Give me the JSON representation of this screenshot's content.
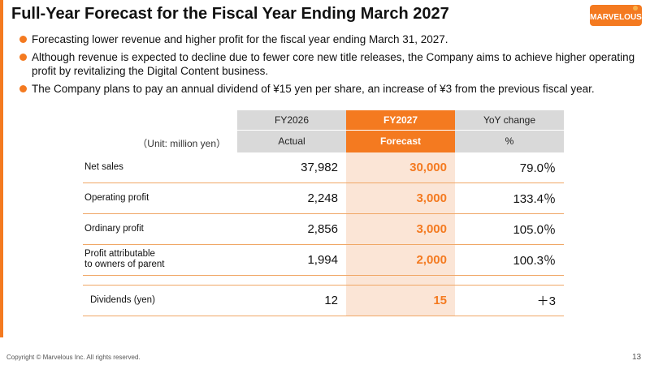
{
  "title": "Full-Year Forecast for the Fiscal Year Ending March 2027",
  "logo_text": "MARVELOUS",
  "bullets": [
    "Forecasting lower revenue and higher profit for the fiscal year ending March 31, 2027.",
    "Although revenue is expected to decline due to fewer core new title releases, the Company aims to achieve higher operating profit by revitalizing the Digital Content business.",
    "The Company plans to pay an annual dividend of ¥15 yen per share, an increase of ¥3 from the previous fiscal year."
  ],
  "table": {
    "unit": "（Unit: million yen）",
    "col_headers": [
      "FY2026",
      "FY2027",
      "YoY change"
    ],
    "col_subheaders": [
      "Actual",
      "Forecast",
      "%"
    ],
    "rows": [
      {
        "label": "Net sales",
        "fy2026": "37,982",
        "fy2027": "30,000",
        "yoy": "79.0％"
      },
      {
        "label": "Operating profit",
        "fy2026": "2,248",
        "fy2027": "3,000",
        "yoy": "133.4％"
      },
      {
        "label": "Ordinary profit",
        "fy2026": "2,856",
        "fy2027": "3,000",
        "yoy": "105.0％"
      },
      {
        "label_line1": "Profit attributable",
        "label_line2": "to owners of parent",
        "fy2026": "1,994",
        "fy2027": "2,000",
        "yoy": "100.3％"
      }
    ],
    "dividend_row": {
      "label": "Dividends (yen)",
      "fy2026": "12",
      "fy2027": "15",
      "yoy": "＋3"
    }
  },
  "footer": "Copyright © Marvelous Inc. All rights reserved.",
  "page_number": "13",
  "colors": {
    "accent": "#f47a20",
    "highlight": "#fbe5d6",
    "header_gray": "#d9d9d9"
  }
}
